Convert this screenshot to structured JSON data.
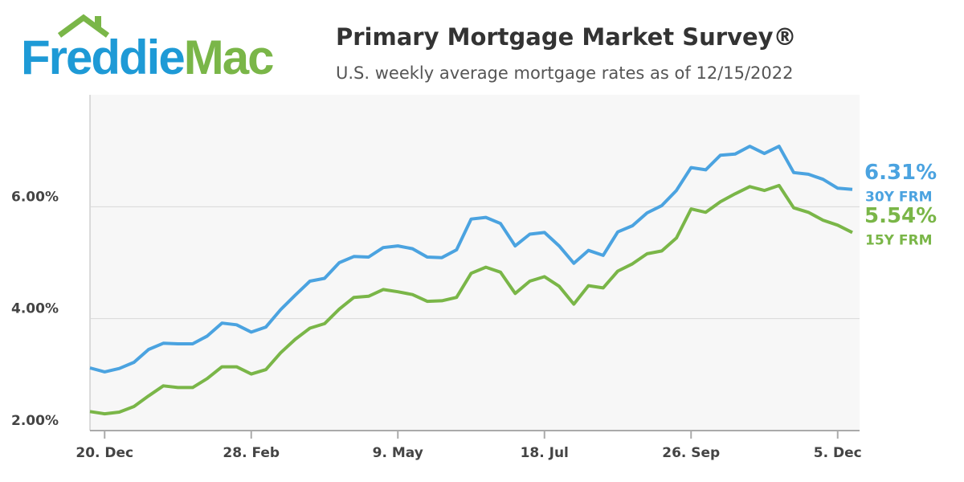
{
  "brand": [
    "Freddie",
    "Mac"
  ],
  "chart_data": {
    "type": "line",
    "title": "Primary Mortgage Market Survey®",
    "subtitle": "U.S. weekly average mortgage rates as of 12/15/2022",
    "categories": [
      null,
      "20. Dec",
      null,
      null,
      null,
      null,
      null,
      null,
      null,
      null,
      null,
      "28. Feb",
      null,
      null,
      null,
      null,
      null,
      null,
      null,
      null,
      null,
      "9. May",
      null,
      null,
      null,
      null,
      null,
      null,
      null,
      null,
      null,
      "18. Jul",
      null,
      null,
      null,
      null,
      null,
      null,
      null,
      null,
      null,
      "26. Sep",
      null,
      null,
      null,
      null,
      null,
      null,
      null,
      null,
      null,
      "5. Dec",
      null
    ],
    "series": [
      {
        "name": "30Y FRM",
        "color": "#4ba3e0",
        "values": [
          3.12,
          3.05,
          3.11,
          3.22,
          3.45,
          3.56,
          3.55,
          3.55,
          3.69,
          3.92,
          3.89,
          3.76,
          3.85,
          4.16,
          4.42,
          4.67,
          4.72,
          5.0,
          5.11,
          5.1,
          5.27,
          5.3,
          5.25,
          5.1,
          5.09,
          5.23,
          5.78,
          5.81,
          5.7,
          5.3,
          5.51,
          5.54,
          5.3,
          4.99,
          5.22,
          5.13,
          5.55,
          5.66,
          5.89,
          6.02,
          6.29,
          6.7,
          6.66,
          6.92,
          6.94,
          7.08,
          6.95,
          7.08,
          6.61,
          6.58,
          6.49,
          6.33,
          6.31
        ],
        "value_labels": [
          null,
          null,
          null,
          null,
          null,
          null,
          null,
          null,
          null,
          null,
          null,
          null,
          null,
          null,
          null,
          null,
          null,
          null,
          null,
          null,
          null,
          null,
          null,
          null,
          null,
          null,
          null,
          null,
          null,
          null,
          null,
          null,
          null,
          null,
          null,
          null,
          null,
          null,
          null,
          null,
          null,
          null,
          null,
          null,
          null,
          null,
          null,
          null,
          null,
          null,
          null,
          null,
          "6.31%"
        ]
      },
      {
        "name": "15Y FRM",
        "color": "#7ab648",
        "values": [
          2.34,
          2.3,
          2.33,
          2.43,
          2.62,
          2.8,
          2.77,
          2.77,
          2.93,
          3.14,
          3.14,
          3.01,
          3.09,
          3.39,
          3.63,
          3.83,
          3.91,
          4.17,
          4.38,
          4.4,
          4.52,
          4.48,
          4.43,
          4.31,
          4.32,
          4.38,
          4.81,
          4.92,
          4.83,
          4.45,
          4.67,
          4.75,
          4.58,
          4.26,
          4.59,
          4.55,
          4.85,
          4.98,
          5.16,
          5.21,
          5.44,
          5.96,
          5.9,
          6.09,
          6.23,
          6.36,
          6.29,
          6.38,
          5.98,
          5.9,
          5.76,
          5.67,
          5.54
        ],
        "value_labels": [
          null,
          null,
          null,
          null,
          null,
          null,
          null,
          null,
          null,
          null,
          null,
          null,
          null,
          null,
          null,
          null,
          null,
          null,
          null,
          null,
          null,
          null,
          null,
          null,
          null,
          null,
          null,
          null,
          null,
          null,
          null,
          null,
          null,
          null,
          null,
          null,
          null,
          null,
          null,
          null,
          null,
          null,
          null,
          null,
          null,
          null,
          null,
          null,
          null,
          null,
          null,
          null,
          "5.54%"
        ]
      }
    ],
    "ylim": [
      2,
      8
    ],
    "yticks": [
      {
        "value": 2,
        "label": "2.00%"
      },
      {
        "value": 4,
        "label": "4.00%"
      },
      {
        "value": 6,
        "label": "6.00%"
      }
    ],
    "grid": true
  }
}
